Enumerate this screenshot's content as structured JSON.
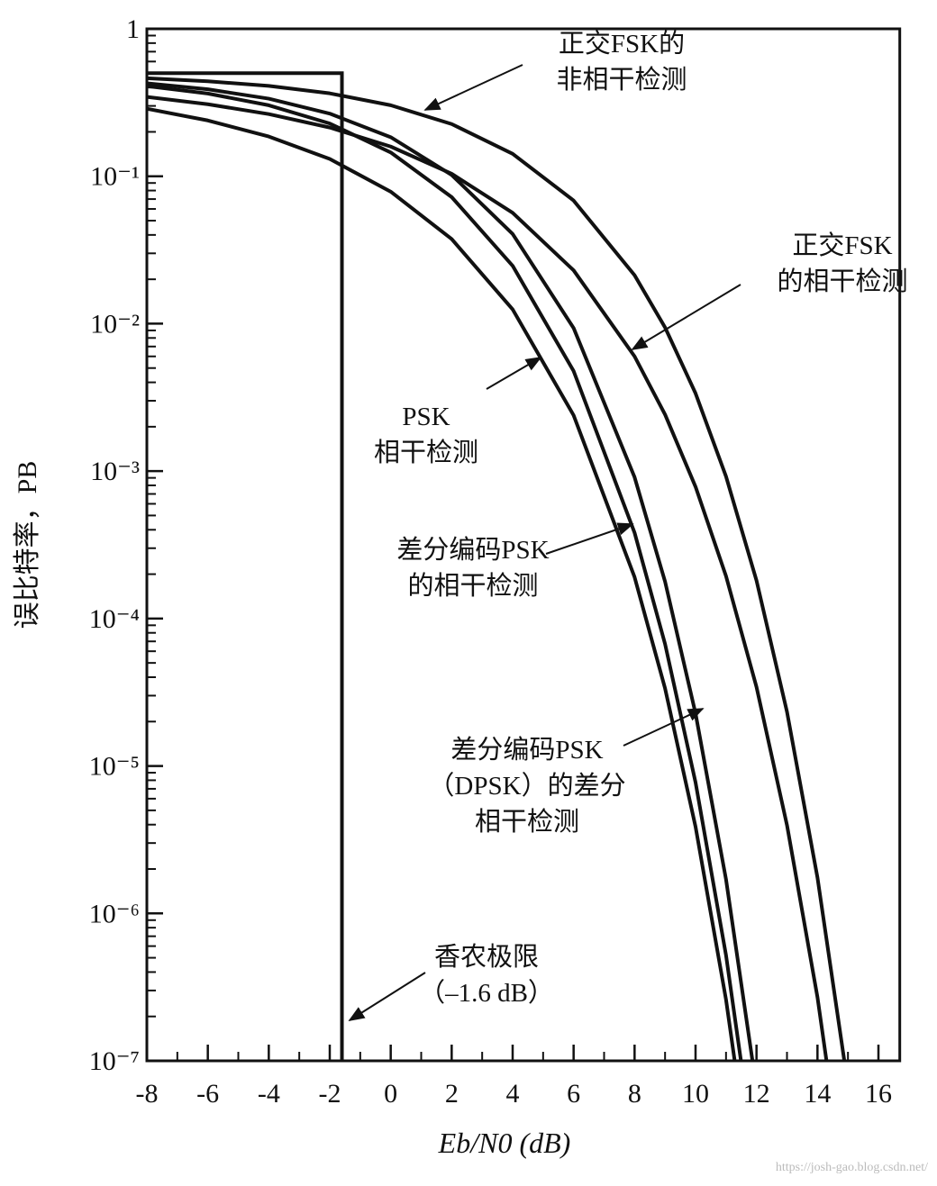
{
  "chart_data": {
    "type": "line",
    "x_label": "Eb/N0 (dB)",
    "y_label": "误比特率，PB",
    "yscale": "log",
    "xlim": [
      -8,
      16.7
    ],
    "ylim": [
      1e-07,
      1
    ],
    "xticks": [
      -8,
      -6,
      -4,
      -2,
      0,
      2,
      4,
      6,
      8,
      10,
      12,
      14,
      16
    ],
    "yticks": [
      1,
      {
        "value": 0.1,
        "label": "10⁻¹"
      },
      {
        "value": 0.01,
        "label": "10⁻²"
      },
      {
        "value": 0.001,
        "label": "10⁻³"
      },
      {
        "value": 0.0001,
        "label": "10⁻⁴"
      },
      {
        "value": 1e-05,
        "label": "10⁻⁵"
      },
      {
        "value": 1e-06,
        "label": "10⁻⁶"
      },
      {
        "value": 1e-07,
        "label": "10⁻⁷"
      }
    ],
    "x": [
      -8,
      -6,
      -4,
      -2,
      0,
      2,
      4,
      6,
      8,
      9,
      10,
      11,
      12,
      13,
      14,
      15
    ],
    "series": [
      {
        "color": "#111111",
        "values": [
          0.462,
          0.441,
          0.41,
          0.365,
          0.303,
          0.226,
          0.142,
          0.0684,
          0.0213,
          0.00943,
          0.00337,
          0.00092,
          0.000181,
          2.33e-05,
          1.75e-06,
          6.8e-08
        ]
      },
      {
        "color": "#111111",
        "values": [
          0.345,
          0.308,
          0.264,
          0.214,
          0.159,
          0.104,
          0.0565,
          0.023,
          0.006,
          0.00242,
          0.000783,
          0.000194,
          3.43e-05,
          3.97e-06,
          2.7e-07,
          9.4e-09
        ]
      },
      {
        "color": "#111111",
        "values": [
          0.427,
          0.389,
          0.336,
          0.266,
          0.184,
          0.102,
          0.0406,
          0.00934,
          0.000909,
          0.000178,
          2.27e-05,
          1.7e-06,
          6.5e-08,
          null,
          null,
          null
        ]
      },
      {
        "color": "#111111",
        "values": [
          0.409,
          0.364,
          0.303,
          0.228,
          0.145,
          0.0722,
          0.0247,
          0.00477,
          0.000382,
          6.72e-05,
          7.74e-06,
          5.2e-07,
          1.8e-08,
          null,
          null,
          null
        ]
      },
      {
        "color": "#111111",
        "values": [
          0.287,
          0.239,
          0.186,
          0.131,
          0.0786,
          0.0375,
          0.0125,
          0.00239,
          0.000191,
          3.36e-05,
          3.87e-06,
          2.6e-07,
          9e-09,
          null,
          null,
          null
        ]
      }
    ],
    "shannon_limit": {
      "x": [
        -8,
        -1.6,
        -1.6
      ],
      "values": [
        0.5,
        0.5,
        1e-07
      ]
    },
    "annotations": [
      [
        "正交FSK的",
        "非相干检测"
      ],
      [
        "正交FSK",
        "的相干检测"
      ],
      [
        "PSK",
        "相干检测"
      ],
      [
        "差分编码PSK",
        "的相干检测"
      ],
      [
        "差分编码PSK",
        "（DPSK）的差分",
        "相干检测"
      ],
      [
        "香农极限",
        "（–1.6 dB）"
      ]
    ],
    "watermark": "https://josh-gao.blog.csdn.net/"
  }
}
